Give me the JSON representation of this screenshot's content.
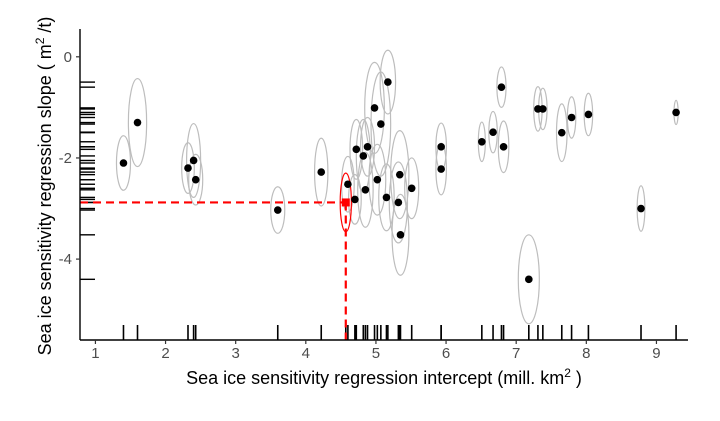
{
  "chart_data": {
    "type": "scatter",
    "title": "",
    "xlabel_main": "Sea ice sensitivity regression intercept (mill.  km",
    "xlabel_sup": "2",
    "xlabel_tail": " )",
    "ylabel_main": "Sea ice sensitivity regression slope  ( m",
    "ylabel_sup": "2",
    "ylabel_tail": " /t)",
    "xlim": [
      0.78,
      9.45
    ],
    "ylim": [
      -5.6,
      0.55
    ],
    "x_ticks": [
      1,
      2,
      3,
      4,
      5,
      6,
      7,
      8,
      9
    ],
    "x_tick_labels": [
      "1",
      "2",
      "3",
      "4",
      "5",
      "6",
      "7",
      "8",
      "9"
    ],
    "y_ticks": [
      0,
      -2,
      -4
    ],
    "y_tick_labels": [
      "0",
      "-2",
      "-4"
    ],
    "grid": false,
    "ellipse_color": "#bdbdbd",
    "point_color": "#000000",
    "highlight_color": "#ff0000",
    "points": [
      {
        "x": 1.4,
        "y": -2.1,
        "w": 0.2,
        "h": 1.08
      },
      {
        "x": 1.6,
        "y": -1.3,
        "w": 0.26,
        "h": 1.74
      },
      {
        "x": 2.32,
        "y": -2.2,
        "w": 0.18,
        "h": 1.0
      },
      {
        "x": 2.4,
        "y": -2.05,
        "w": 0.2,
        "h": 1.46
      },
      {
        "x": 2.43,
        "y": -2.43,
        "w": 0.2,
        "h": 1.0
      },
      {
        "x": 3.6,
        "y": -3.03,
        "w": 0.2,
        "h": 0.92
      },
      {
        "x": 4.22,
        "y": -2.28,
        "w": 0.19,
        "h": 1.34
      },
      {
        "x": 4.6,
        "y": -2.52,
        "w": 0.18,
        "h": 1.1
      },
      {
        "x": 4.7,
        "y": -2.82,
        "w": 0.18,
        "h": 0.98
      },
      {
        "x": 4.72,
        "y": -1.83,
        "w": 0.18,
        "h": 1.18
      },
      {
        "x": 4.82,
        "y": -1.96,
        "w": 0.2,
        "h": 1.44
      },
      {
        "x": 4.85,
        "y": -2.63,
        "w": 0.22,
        "h": 1.48
      },
      {
        "x": 4.88,
        "y": -1.78,
        "w": 0.2,
        "h": 1.16
      },
      {
        "x": 4.98,
        "y": -1.01,
        "w": 0.28,
        "h": 1.8
      },
      {
        "x": 5.02,
        "y": -2.43,
        "w": 0.24,
        "h": 1.4
      },
      {
        "x": 5.07,
        "y": -1.33,
        "w": 0.28,
        "h": 2.06
      },
      {
        "x": 5.15,
        "y": -2.78,
        "w": 0.22,
        "h": 1.32
      },
      {
        "x": 5.17,
        "y": -0.5,
        "w": 0.22,
        "h": 1.26
      },
      {
        "x": 5.32,
        "y": -2.88,
        "w": 0.26,
        "h": 1.6
      },
      {
        "x": 5.34,
        "y": -2.33,
        "w": 0.26,
        "h": 1.74
      },
      {
        "x": 5.35,
        "y": -3.52,
        "w": 0.24,
        "h": 1.6
      },
      {
        "x": 5.51,
        "y": -2.6,
        "w": 0.2,
        "h": 1.2
      },
      {
        "x": 5.93,
        "y": -1.78,
        "w": 0.15,
        "h": 0.94
      },
      {
        "x": 5.93,
        "y": -2.22,
        "w": 0.15,
        "h": 1.02
      },
      {
        "x": 6.51,
        "y": -1.68,
        "w": 0.1,
        "h": 0.78
      },
      {
        "x": 6.67,
        "y": -1.49,
        "w": 0.12,
        "h": 0.82
      },
      {
        "x": 6.79,
        "y": -0.6,
        "w": 0.13,
        "h": 0.8
      },
      {
        "x": 6.82,
        "y": -1.78,
        "w": 0.15,
        "h": 1.02
      },
      {
        "x": 7.18,
        "y": -4.4,
        "w": 0.3,
        "h": 1.76
      },
      {
        "x": 7.31,
        "y": -1.03,
        "w": 0.12,
        "h": 0.88
      },
      {
        "x": 7.38,
        "y": -1.03,
        "w": 0.12,
        "h": 0.82
      },
      {
        "x": 7.65,
        "y": -1.5,
        "w": 0.15,
        "h": 1.14
      },
      {
        "x": 7.79,
        "y": -1.2,
        "w": 0.12,
        "h": 0.82
      },
      {
        "x": 8.03,
        "y": -1.14,
        "w": 0.12,
        "h": 0.84
      },
      {
        "x": 8.78,
        "y": -3.0,
        "w": 0.11,
        "h": 0.9
      },
      {
        "x": 9.28,
        "y": -1.1,
        "w": 0.06,
        "h": 0.48
      }
    ],
    "highlight": {
      "x": 4.57,
      "y": -2.88,
      "w": 0.16,
      "h": 1.16
    }
  }
}
